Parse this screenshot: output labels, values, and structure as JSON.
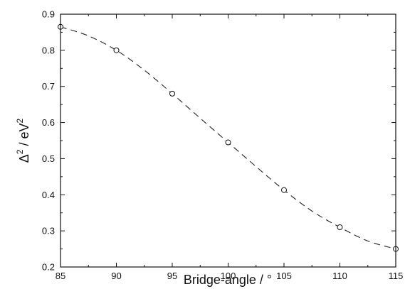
{
  "chart_data": {
    "type": "scatter",
    "title": "",
    "xlabel": "Bridge-angle / °",
    "ylabel_parts": {
      "delta": "Δ",
      "sup1": "2",
      "mid": " / eV",
      "sup2": "2"
    },
    "xlim": [
      85,
      115
    ],
    "ylim": [
      0.2,
      0.9
    ],
    "xticks": [
      85,
      90,
      95,
      100,
      105,
      110,
      115
    ],
    "yticks": [
      0.2,
      0.3,
      0.4,
      0.5,
      0.6,
      0.7,
      0.8,
      0.9
    ],
    "xtick_labels": [
      "85",
      "90",
      "95",
      "100",
      "105",
      "110",
      "115"
    ],
    "ytick_labels": [
      "0.2",
      "0.3",
      "0.4",
      "0.5",
      "0.6",
      "0.7",
      "0.8",
      "0.9"
    ],
    "grid": false,
    "series": [
      {
        "marker": "open-circle",
        "x": [
          85,
          90,
          95,
          100,
          105,
          110,
          115
        ],
        "y": [
          0.865,
          0.8,
          0.68,
          0.545,
          0.413,
          0.31,
          0.25
        ]
      }
    ],
    "fit_curve": {
      "style": "dashed",
      "x": [
        85,
        87.5,
        90,
        92.5,
        95,
        97.5,
        100,
        102.5,
        105,
        107.5,
        110,
        112.5,
        115
      ],
      "y": [
        0.865,
        0.84,
        0.8,
        0.745,
        0.68,
        0.612,
        0.545,
        0.478,
        0.413,
        0.355,
        0.31,
        0.272,
        0.25
      ]
    }
  }
}
